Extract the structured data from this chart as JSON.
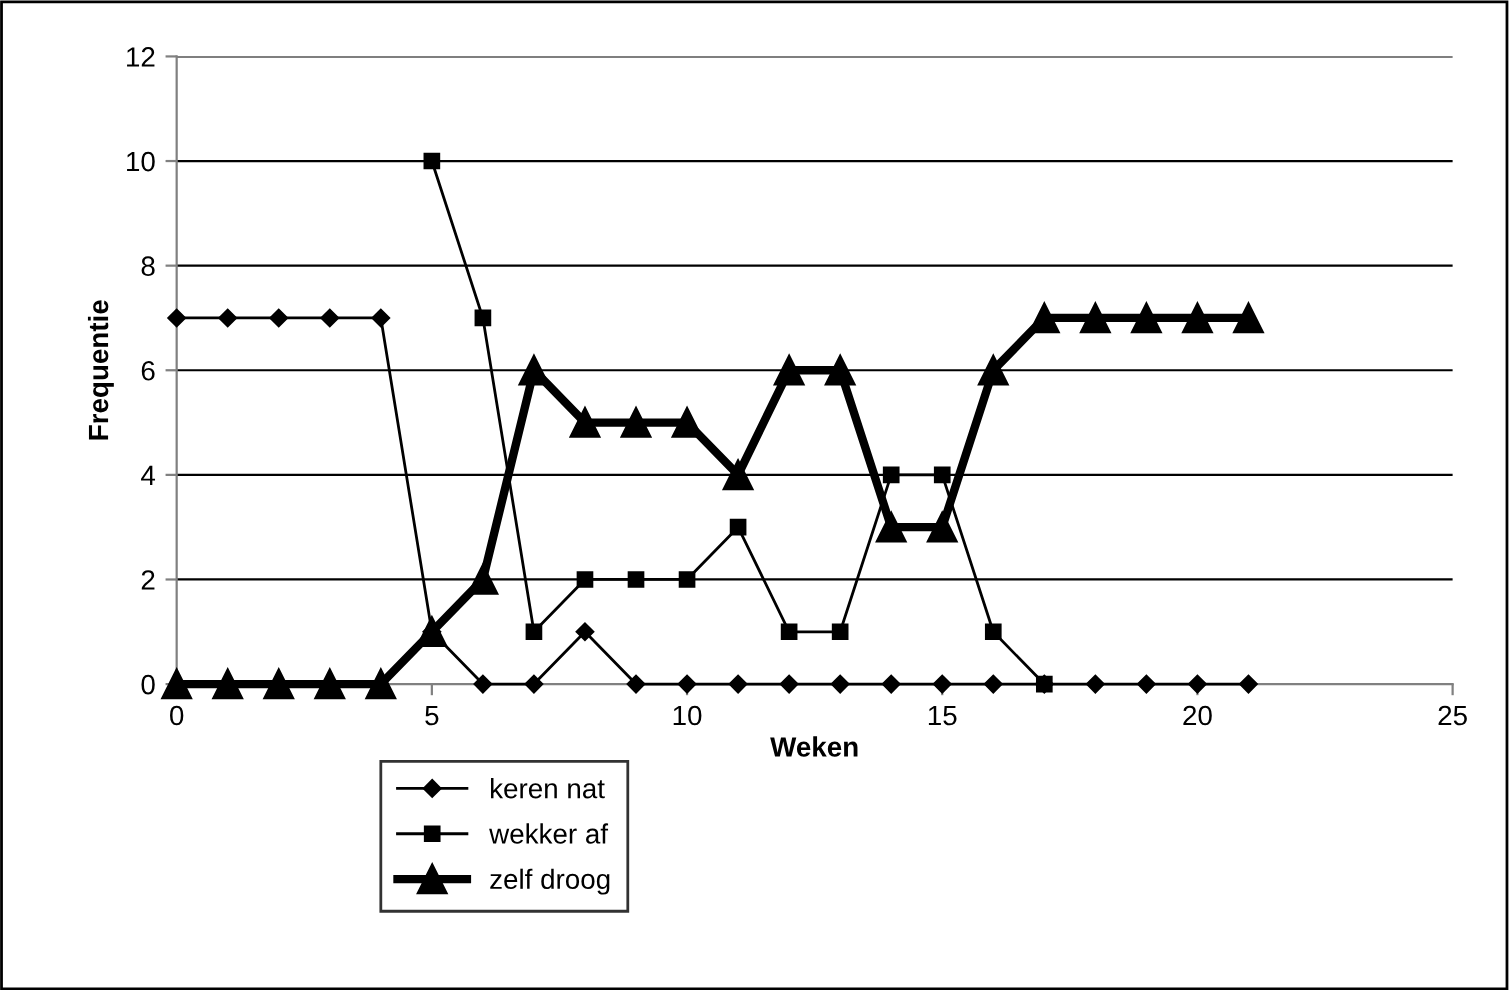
{
  "chart_data": {
    "type": "line",
    "xlabel": "Weken",
    "ylabel": "Frequentie",
    "x": [
      0,
      1,
      2,
      3,
      4,
      5,
      6,
      7,
      8,
      9,
      10,
      11,
      12,
      13,
      14,
      15,
      16,
      17,
      18,
      19,
      20,
      21
    ],
    "series": [
      {
        "name": "keren nat",
        "color": "#000000",
        "marker": "diamond",
        "values": [
          7,
          7,
          7,
          7,
          7,
          1,
          0,
          0,
          1,
          0,
          0,
          0,
          0,
          0,
          0,
          0,
          0,
          0,
          0,
          0,
          0,
          0
        ]
      },
      {
        "name": "wekker af",
        "color": "#000000",
        "marker": "square",
        "values": [
          null,
          null,
          null,
          null,
          null,
          10,
          7,
          1,
          2,
          2,
          2,
          3,
          1,
          1,
          4,
          4,
          1,
          0,
          null,
          null,
          null,
          null
        ]
      },
      {
        "name": "zelf droog",
        "color": "#000000",
        "marker": "triangle",
        "values": [
          0,
          0,
          0,
          0,
          0,
          1,
          2,
          6,
          5,
          5,
          5,
          4,
          6,
          6,
          3,
          3,
          6,
          7,
          7,
          7,
          7,
          7
        ]
      }
    ],
    "xlim": [
      0,
      25
    ],
    "xticks": [
      0,
      5,
      10,
      15,
      20,
      25
    ],
    "ylim": [
      0,
      12
    ],
    "yticks": [
      0,
      2,
      4,
      6,
      8,
      10,
      12
    ],
    "grid": "y",
    "legend": "bottom",
    "line_style": "solid"
  }
}
